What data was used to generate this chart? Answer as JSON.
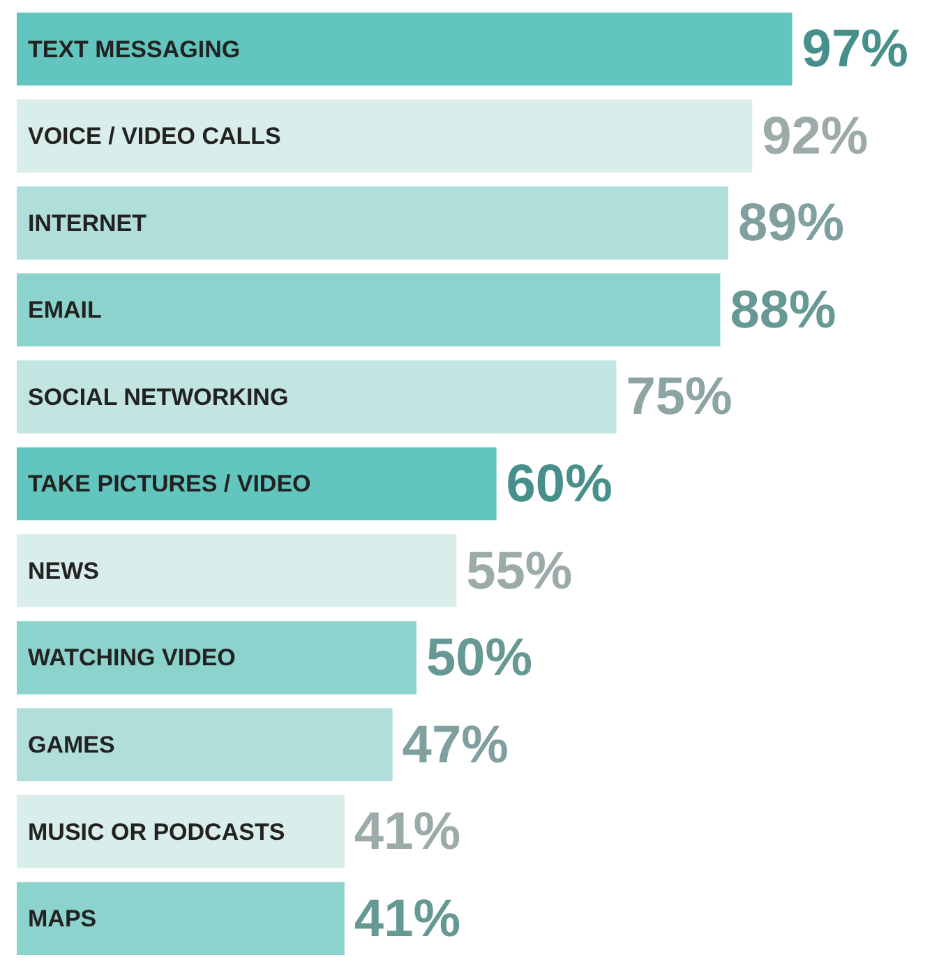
{
  "chart_data": {
    "type": "bar",
    "orientation": "horizontal",
    "categories": [
      "TEXT MESSAGING",
      "VOICE / VIDEO CALLS",
      "INTERNET",
      "EMAIL",
      "SOCIAL NETWORKING",
      "TAKE PICTURES / VIDEO",
      "NEWS",
      "WATCHING VIDEO",
      "GAMES",
      "MUSIC OR PODCASTS",
      "MAPS"
    ],
    "values": [
      97,
      92,
      89,
      88,
      75,
      60,
      55,
      50,
      47,
      41,
      41
    ],
    "colors": [
      "#62c6bf",
      "#d9eeeb",
      "#b0dedb",
      "#8dd3cd",
      "#c2e5e2",
      "#62c6bf",
      "#d9eeeb",
      "#8dd3cd",
      "#b0dedb",
      "#d9eeeb",
      "#8dd3cd"
    ],
    "value_labels": [
      "97%",
      "92%",
      "89%",
      "88%",
      "75%",
      "60%",
      "55%",
      "50%",
      "47%",
      "41%",
      "41%"
    ]
  }
}
